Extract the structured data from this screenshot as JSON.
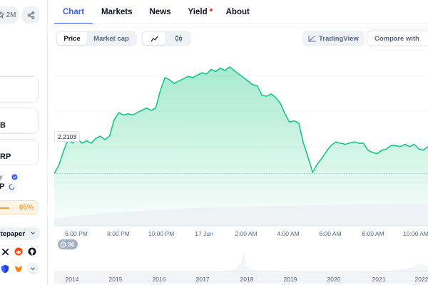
{
  "sidebar": {
    "share_count": "2M",
    "card_b": "B",
    "card_rp": "RP",
    "card_y": "y",
    "card_p": "P",
    "progress_percent": 65,
    "progress_label": "65%",
    "whitepaper": "itepaper"
  },
  "tabs": [
    {
      "label": "Chart",
      "active": true
    },
    {
      "label": "Markets",
      "active": false
    },
    {
      "label": "News",
      "active": false
    },
    {
      "label": "Yield",
      "active": false,
      "dot": true
    },
    {
      "label": "About",
      "active": false
    }
  ],
  "toolbar": {
    "price": "Price",
    "market_cap": "Market cap",
    "tradingview": "TradingView",
    "compare": "Compare with"
  },
  "chart_data": {
    "type": "area",
    "current_value_label": "2.2103",
    "reference_value": 2.2103,
    "x_tick_labels": [
      "6:00 PM",
      "8:00 PM",
      "10:00 PM",
      "17 Jun",
      "2:00 AM",
      "4:00 AM",
      "6:00 AM",
      "8:00 AM",
      "10:00 AM"
    ],
    "history_tick_labels": [
      "2014",
      "2015",
      "2016",
      "2017",
      "2018",
      "2019",
      "2020",
      "2021",
      "2022"
    ],
    "events_badge": "36",
    "series": [
      {
        "values": [
          2.21,
          2.224,
          2.248,
          2.268,
          2.262,
          2.27,
          2.262,
          2.266,
          2.262,
          2.27,
          2.274,
          2.268,
          2.274,
          2.302,
          2.314,
          2.31,
          2.312,
          2.31,
          2.314,
          2.318,
          2.322,
          2.318,
          2.322,
          2.352,
          2.374,
          2.37,
          2.364,
          2.368,
          2.372,
          2.376,
          2.374,
          2.378,
          2.382,
          2.38,
          2.388,
          2.384,
          2.39,
          2.386,
          2.392,
          2.386,
          2.38,
          2.374,
          2.368,
          2.362,
          2.36,
          2.344,
          2.342,
          2.346,
          2.34,
          2.33,
          2.312,
          2.298,
          2.3,
          2.296,
          2.262,
          2.238,
          2.212,
          2.226,
          2.236,
          2.248,
          2.258,
          2.264,
          2.262,
          2.26,
          2.262,
          2.264,
          2.262,
          2.262,
          2.25,
          2.246,
          2.244,
          2.25,
          2.252,
          2.258,
          2.258,
          2.256,
          2.26,
          2.256,
          2.26,
          2.252,
          2.25,
          2.256
        ]
      }
    ]
  },
  "colors": {
    "accent": "#3861fb",
    "up": "#16c784",
    "progress": "#f5a23c"
  }
}
